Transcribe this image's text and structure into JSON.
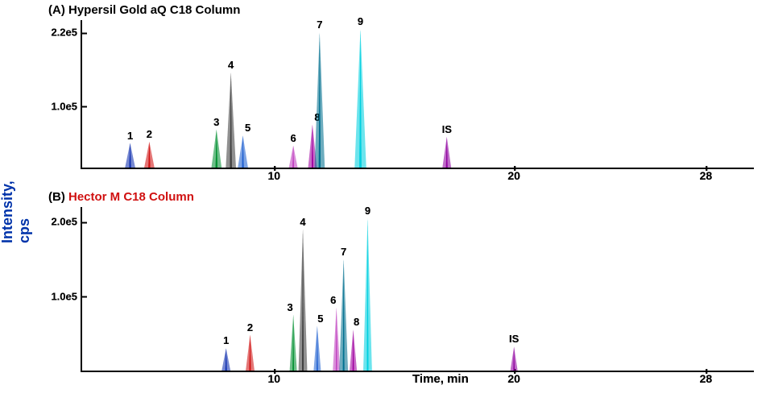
{
  "ylabel": "Intensity, cps",
  "xlabel": "Time, min",
  "x_domain": [
    2,
    30
  ],
  "background_color": "#ffffff",
  "axis_color": "#000000",
  "label_fontsize": 15,
  "tick_fontsize": 13,
  "peak_label_fontsize": 13,
  "panels": {
    "A": {
      "title_prefix": "(A) ",
      "title": "Hypersil Gold aQ C18 Column",
      "title_color": "#000000",
      "y_max": 240000.0,
      "y_ticks": [
        {
          "value": 100000.0,
          "label": "1.0e5"
        },
        {
          "value": 220000.0,
          "label": "2.2e5"
        }
      ],
      "x_ticks": [
        {
          "value": 10,
          "label": "10"
        },
        {
          "value": 20,
          "label": "20"
        },
        {
          "value": 28,
          "label": "28"
        }
      ],
      "peaks": [
        {
          "label": "1",
          "rt": 4.0,
          "height": 40000.0,
          "color": "#1030b0",
          "width": 14
        },
        {
          "label": "2",
          "rt": 4.8,
          "height": 42000.0,
          "color": "#d01010",
          "width": 14
        },
        {
          "label": "3",
          "rt": 7.6,
          "height": 62000.0,
          "color": "#009030",
          "width": 14
        },
        {
          "label": "4",
          "rt": 8.2,
          "height": 155000.0,
          "color": "#404040",
          "width": 14
        },
        {
          "label": "5",
          "rt": 8.7,
          "height": 52000.0,
          "color": "#2060d0",
          "width": 14,
          "label_dx": 6
        },
        {
          "label": "6",
          "rt": 10.8,
          "height": 36000.0,
          "color": "#c040c0",
          "width": 12
        },
        {
          "label": "8",
          "rt": 11.6,
          "height": 70000.0,
          "color": "#a000a0",
          "width": 12,
          "label_dx": 6
        },
        {
          "label": "7",
          "rt": 11.9,
          "height": 220000.0,
          "color": "#007090",
          "width": 14
        },
        {
          "label": "9",
          "rt": 13.6,
          "height": 225000.0,
          "color": "#00d0e0",
          "width": 16
        },
        {
          "label": "IS",
          "rt": 17.2,
          "height": 50000.0,
          "color": "#9000a0",
          "width": 12
        }
      ]
    },
    "B": {
      "title_prefix": "(B) ",
      "title": "Hector M C18 Column",
      "title_color": "#d01010",
      "y_max": 220000.0,
      "y_ticks": [
        {
          "value": 100000.0,
          "label": "1.0e5"
        },
        {
          "value": 200000.0,
          "label": "2.0e5"
        }
      ],
      "x_ticks": [
        {
          "value": 10,
          "label": "10"
        },
        {
          "value": 20,
          "label": "20"
        },
        {
          "value": 28,
          "label": "28"
        }
      ],
      "show_xlabel": true,
      "peaks": [
        {
          "label": "1",
          "rt": 8.0,
          "height": 30000.0,
          "color": "#1030b0",
          "width": 12
        },
        {
          "label": "2",
          "rt": 9.0,
          "height": 48000.0,
          "color": "#d01010",
          "width": 12
        },
        {
          "label": "3",
          "rt": 10.8,
          "height": 75000.0,
          "color": "#009030",
          "width": 10,
          "label_dx": -4
        },
        {
          "label": "4",
          "rt": 11.2,
          "height": 190000.0,
          "color": "#404040",
          "width": 12
        },
        {
          "label": "5",
          "rt": 11.8,
          "height": 60000.0,
          "color": "#2060d0",
          "width": 10,
          "label_dx": 4
        },
        {
          "label": "6",
          "rt": 12.6,
          "height": 85000.0,
          "color": "#c040c0",
          "width": 10,
          "label_dx": -4
        },
        {
          "label": "7",
          "rt": 12.9,
          "height": 150000.0,
          "color": "#007090",
          "width": 12
        },
        {
          "label": "8",
          "rt": 13.3,
          "height": 55000.0,
          "color": "#a000a0",
          "width": 10,
          "label_dx": 4
        },
        {
          "label": "9",
          "rt": 13.9,
          "height": 205000.0,
          "color": "#00d0e0",
          "width": 12
        },
        {
          "label": "IS",
          "rt": 20.0,
          "height": 32000.0,
          "color": "#9000a0",
          "width": 10
        }
      ]
    }
  }
}
